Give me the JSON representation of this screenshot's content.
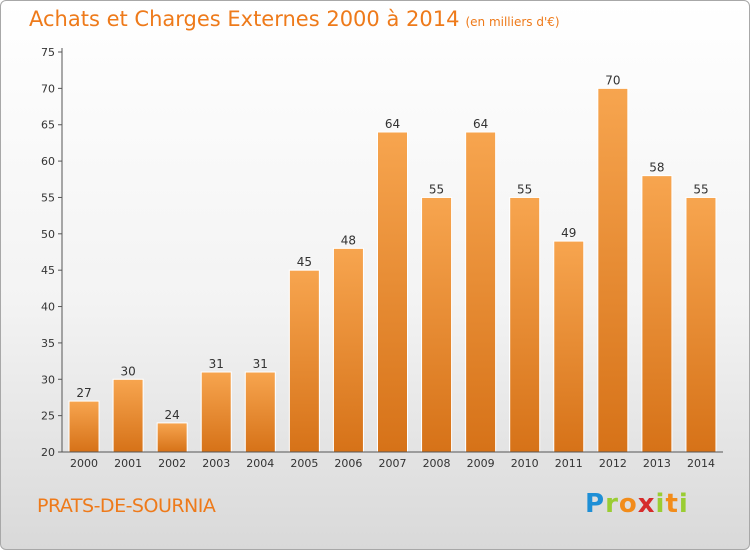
{
  "header": {
    "title": "Achats et Charges Externes 2000 à 2014",
    "unit": "(en milliers d'€)"
  },
  "footer": {
    "commune": "PRATS-DE-SOURNIA",
    "logo_text": "Proxiti"
  },
  "colors": {
    "accent": "#ee7a1a",
    "bar_top": "#f7a54f",
    "bar_bottom": "#d67218"
  },
  "chart_data": {
    "type": "bar",
    "title": "Achats et Charges Externes 2000 à 2014",
    "subtitle": "(en milliers d'€)",
    "xlabel": "",
    "ylabel": "",
    "categories": [
      "2000",
      "2001",
      "2002",
      "2003",
      "2004",
      "2005",
      "2006",
      "2007",
      "2008",
      "2009",
      "2010",
      "2011",
      "2012",
      "2013",
      "2014"
    ],
    "values": [
      27,
      30,
      24,
      31,
      31,
      45,
      48,
      64,
      55,
      64,
      55,
      49,
      70,
      58,
      55
    ],
    "ylim": [
      20,
      75
    ],
    "yticks": [
      20,
      25,
      30,
      35,
      40,
      45,
      50,
      55,
      60,
      65,
      70,
      75
    ],
    "grid": false,
    "legend": "none",
    "data_labels": true
  }
}
